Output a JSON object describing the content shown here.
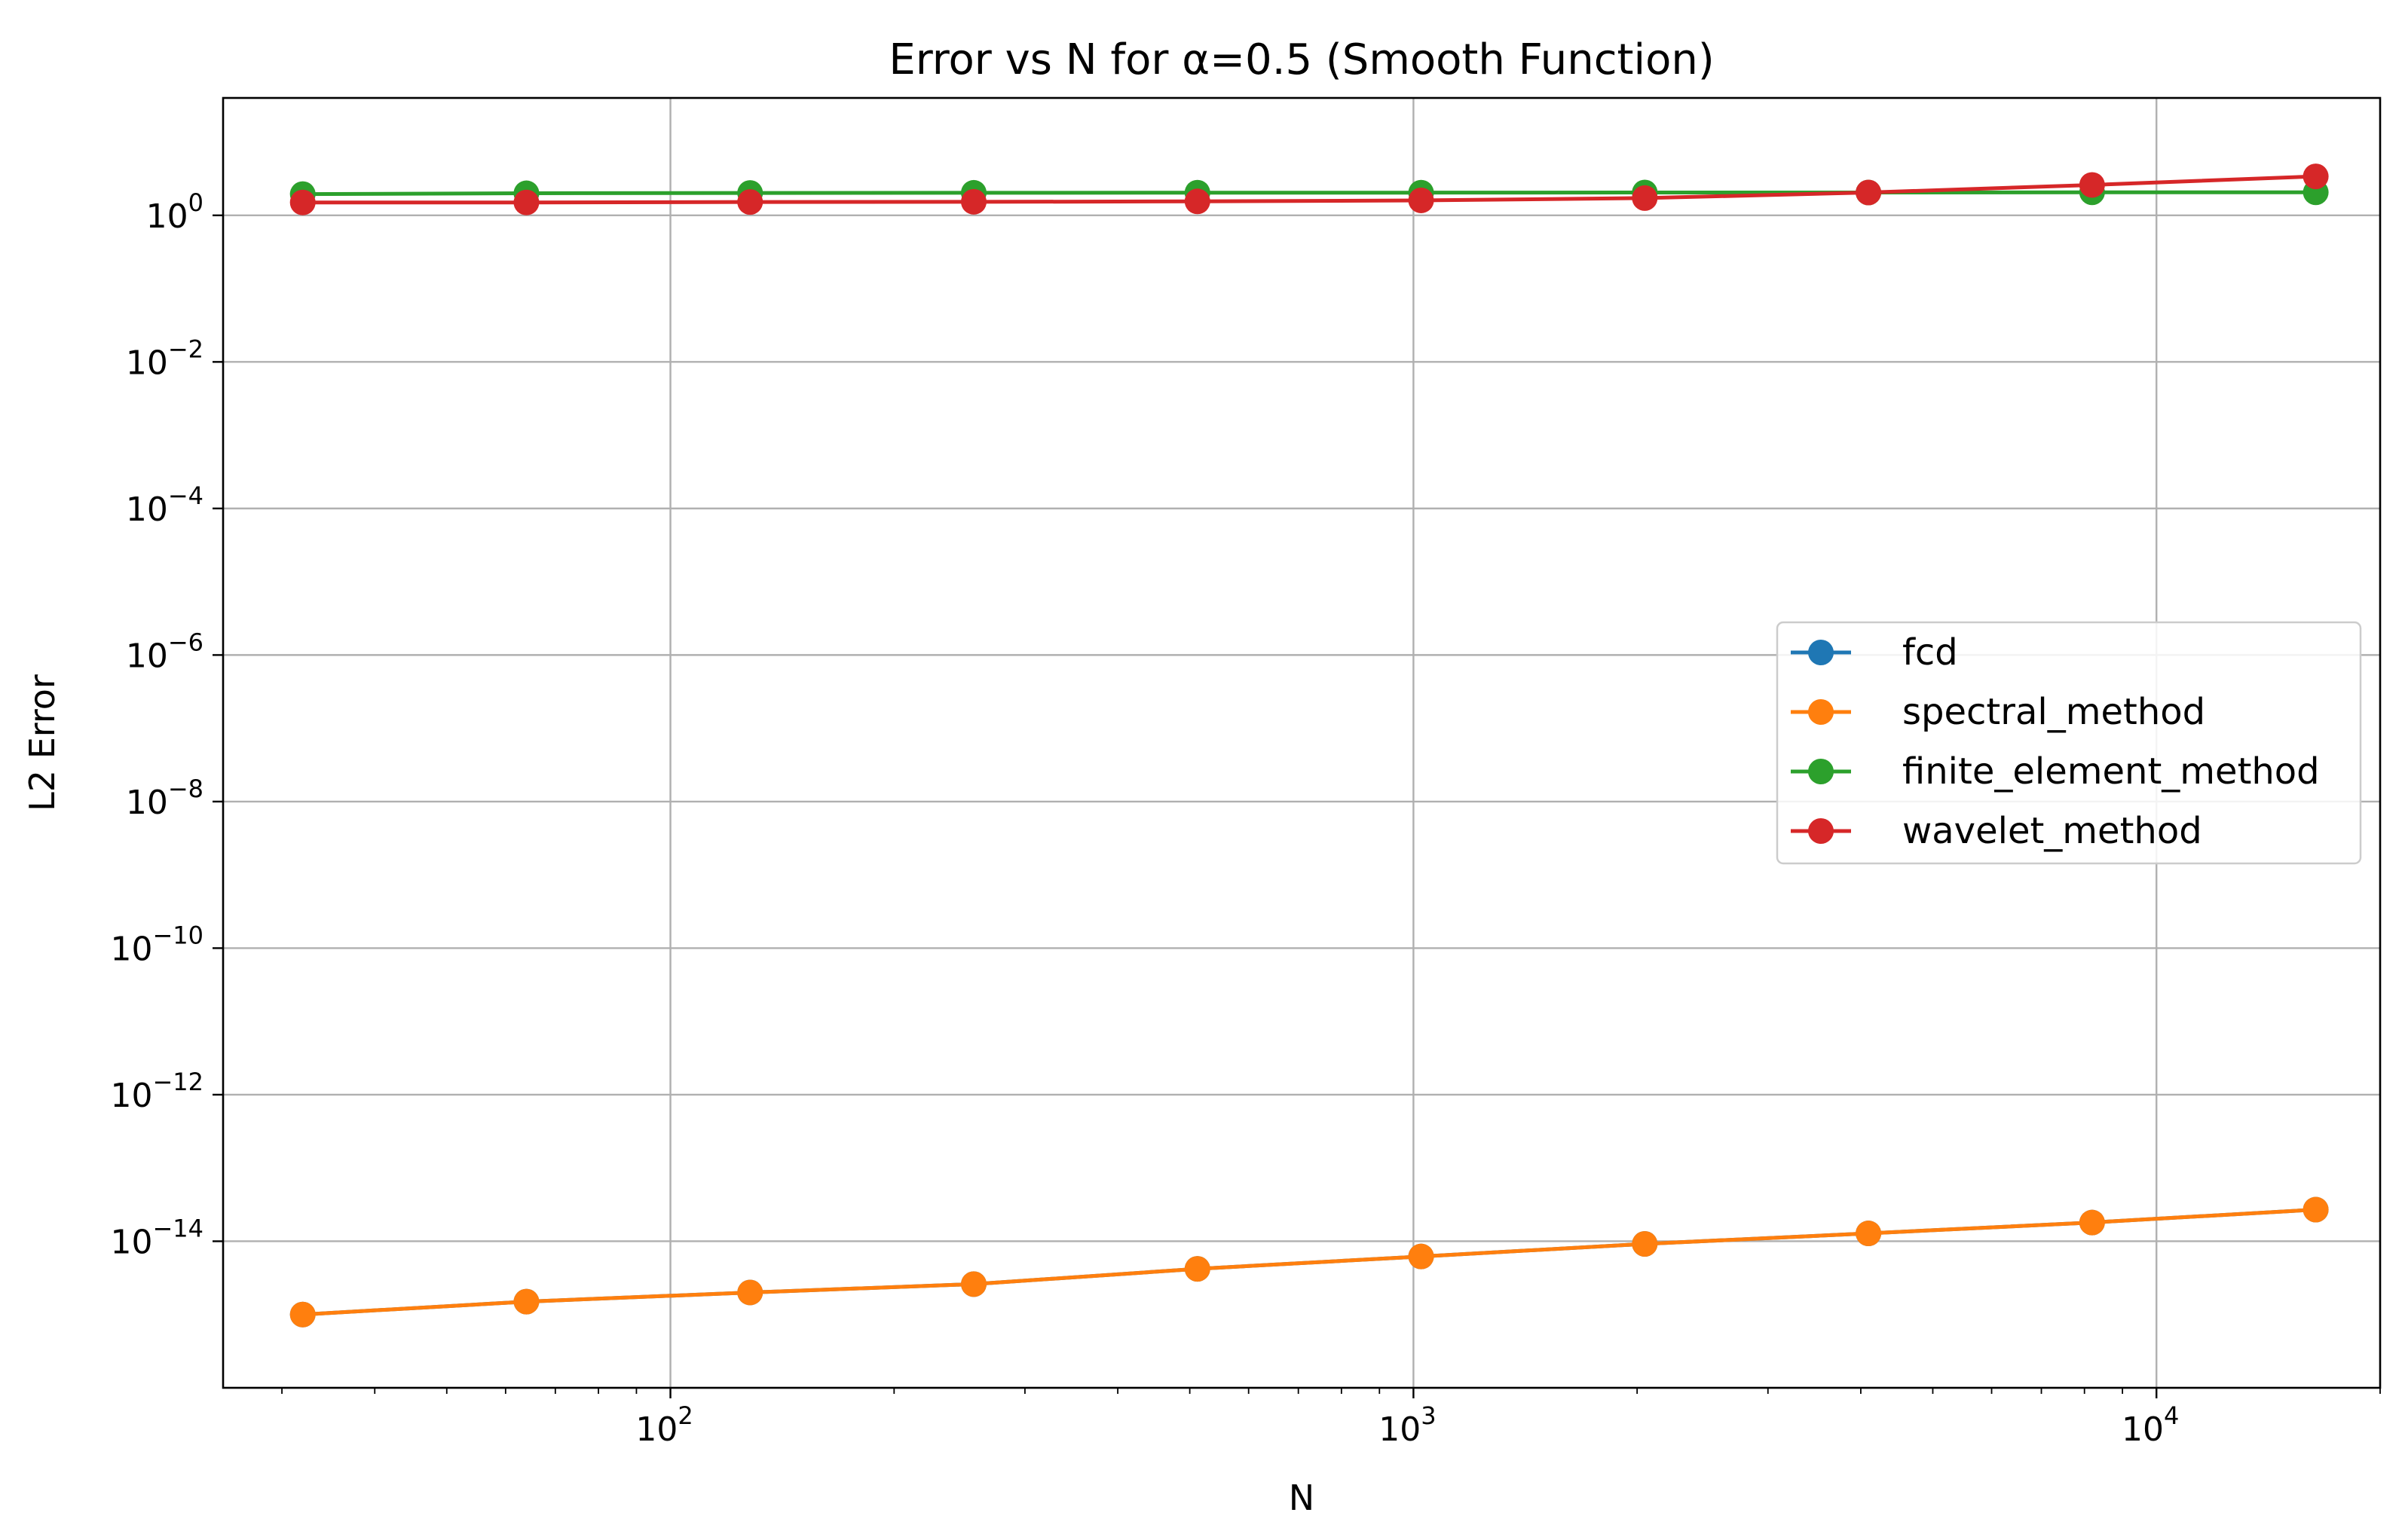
{
  "chart_data": {
    "type": "line",
    "title": "Error vs N for α=0.5 (Smooth Function)",
    "xlabel": "N",
    "ylabel": "L2 Error",
    "xscale": "log",
    "yscale": "log",
    "xlim": [
      25,
      20000
    ],
    "ylim": [
      1e-16,
      40
    ],
    "grid": true,
    "legend_position": "center-right",
    "x_ticks": [
      {
        "value": 100,
        "base": "10",
        "exp": "2"
      },
      {
        "value": 1000,
        "base": "10",
        "exp": "3"
      },
      {
        "value": 10000,
        "base": "10",
        "exp": "4"
      }
    ],
    "y_ticks": [
      {
        "value": 1,
        "base": "10",
        "exp": "0"
      },
      {
        "value": 0.01,
        "base": "10",
        "exp": "−2"
      },
      {
        "value": 0.0001,
        "base": "10",
        "exp": "−4"
      },
      {
        "value": 1e-06,
        "base": "10",
        "exp": "−6"
      },
      {
        "value": 1e-08,
        "base": "10",
        "exp": "−8"
      },
      {
        "value": 1e-10,
        "base": "10",
        "exp": "−10"
      },
      {
        "value": 1e-12,
        "base": "10",
        "exp": "−12"
      },
      {
        "value": 1e-14,
        "base": "10",
        "exp": "−14"
      }
    ],
    "x": [
      32,
      64,
      128,
      256,
      512,
      1024,
      2048,
      4096,
      8192,
      16384
    ],
    "series": [
      {
        "name": "fcd",
        "color": "#1f77b4",
        "values": [
          1e-15,
          1.5e-15,
          2e-15,
          2.6e-15,
          4.2e-15,
          6.2e-15,
          9.2e-15,
          1.28e-14,
          1.8e-14,
          2.7e-14
        ]
      },
      {
        "name": "spectral_method",
        "color": "#ff7f0e",
        "values": [
          1e-15,
          1.5e-15,
          2e-15,
          2.6e-15,
          4.2e-15,
          6.2e-15,
          9.2e-15,
          1.28e-14,
          1.8e-14,
          2.7e-14
        ]
      },
      {
        "name": "finite_element_method",
        "color": "#2ca02c",
        "values": [
          1.95,
          2.0,
          2.02,
          2.03,
          2.04,
          2.04,
          2.05,
          2.05,
          2.06,
          2.06
        ]
      },
      {
        "name": "wavelet_method",
        "color": "#d62728",
        "values": [
          1.5,
          1.5,
          1.52,
          1.53,
          1.55,
          1.6,
          1.72,
          2.05,
          2.6,
          3.4
        ]
      }
    ]
  }
}
